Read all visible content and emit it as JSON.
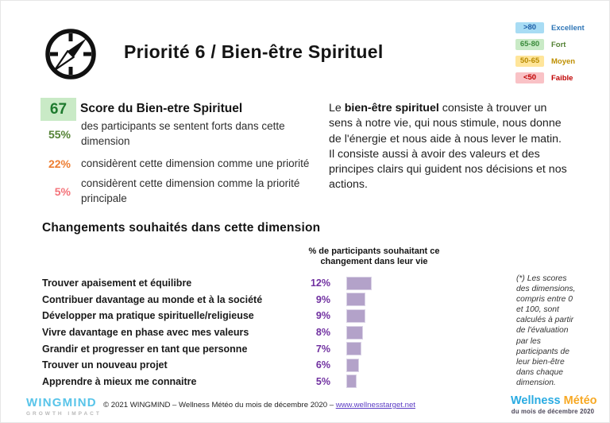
{
  "header": {
    "title": "Priorité 6 / Bien-être Spirituel"
  },
  "legend": {
    "items": [
      {
        "range": ">80",
        "label": "Excellent",
        "bg": "#a8dcf4",
        "range_color": "#1f5fa8",
        "label_color": "#2e75b6"
      },
      {
        "range": "65-80",
        "label": "Fort",
        "bg": "#c9eac6",
        "range_color": "#3a8a3a",
        "label_color": "#548235"
      },
      {
        "range": "50-65",
        "label": "Moyen",
        "bg": "#ffe59a",
        "range_color": "#b88a00",
        "label_color": "#bf8f00"
      },
      {
        "range": "<50",
        "label": "Faible",
        "bg": "#f9c2c6",
        "range_color": "#c00000",
        "label_color": "#c00000"
      }
    ]
  },
  "score_panel": {
    "score": "67",
    "score_bg": "#c9eac6",
    "score_color": "#1e7a2e",
    "title": "Score du Bien-etre Spirituel",
    "stats": [
      {
        "value": "55%",
        "color": "#548235",
        "text": "des participants se sentent forts dans cette dimension"
      },
      {
        "value": "22%",
        "color": "#ed7d31",
        "text": "considèrent cette dimension comme une priorité"
      },
      {
        "value": "5%",
        "color": "#f4737a",
        "text": "considèrent cette dimension comme la priorité principale"
      }
    ]
  },
  "description": {
    "prefix": "Le ",
    "highlight": "bien-être spirituel",
    "body": " consiste à trouver un sens à notre vie, qui nous stimule, nous donne de l'énergie et nous aide à nous lever le matin. Il consiste aussi à avoir des valeurs et des principes clairs qui guident nos décisions et nos actions."
  },
  "chart_data": {
    "type": "bar",
    "orientation": "horizontal",
    "title": "Changements souhaités dans cette dimension",
    "value_axis_label": "% de participants souhaitant ce changement dans leur vie",
    "categories": [
      "Trouver apaisement et équilibre",
      "Contribuer davantage au monde et à la société",
      "Développer ma pratique spirituelle/religieuse",
      "Vivre davantage en phase avec mes valeurs",
      "Grandir et progresser en tant que personne",
      "Trouver un nouveau projet",
      "Apprendre à mieux me connaitre"
    ],
    "values": [
      12,
      9,
      9,
      8,
      7,
      6,
      5
    ],
    "value_labels": [
      "12%",
      "9%",
      "9%",
      "8%",
      "7%",
      "6%",
      "5%"
    ],
    "bar_color": "#b3a2c9",
    "value_color": "#7030a0"
  },
  "footnote": "(*) Les scores des dimensions, compris entre 0 et 100, sont calculés à partir de l'évaluation par les participants de leur bien-être dans chaque dimension.",
  "footer": {
    "logo_name": "WINGMIND",
    "logo_tagline": "GROWTH IMPACT",
    "copyright_text": "© 2021 WINGMIND – Wellness Météo du mois de décembre 2020 – ",
    "copyright_link": "www.wellnesstarget.net",
    "brand_word1": "Wellness",
    "brand_word2": " Météo",
    "brand_subtitle": "du mois de décembre 2020"
  }
}
